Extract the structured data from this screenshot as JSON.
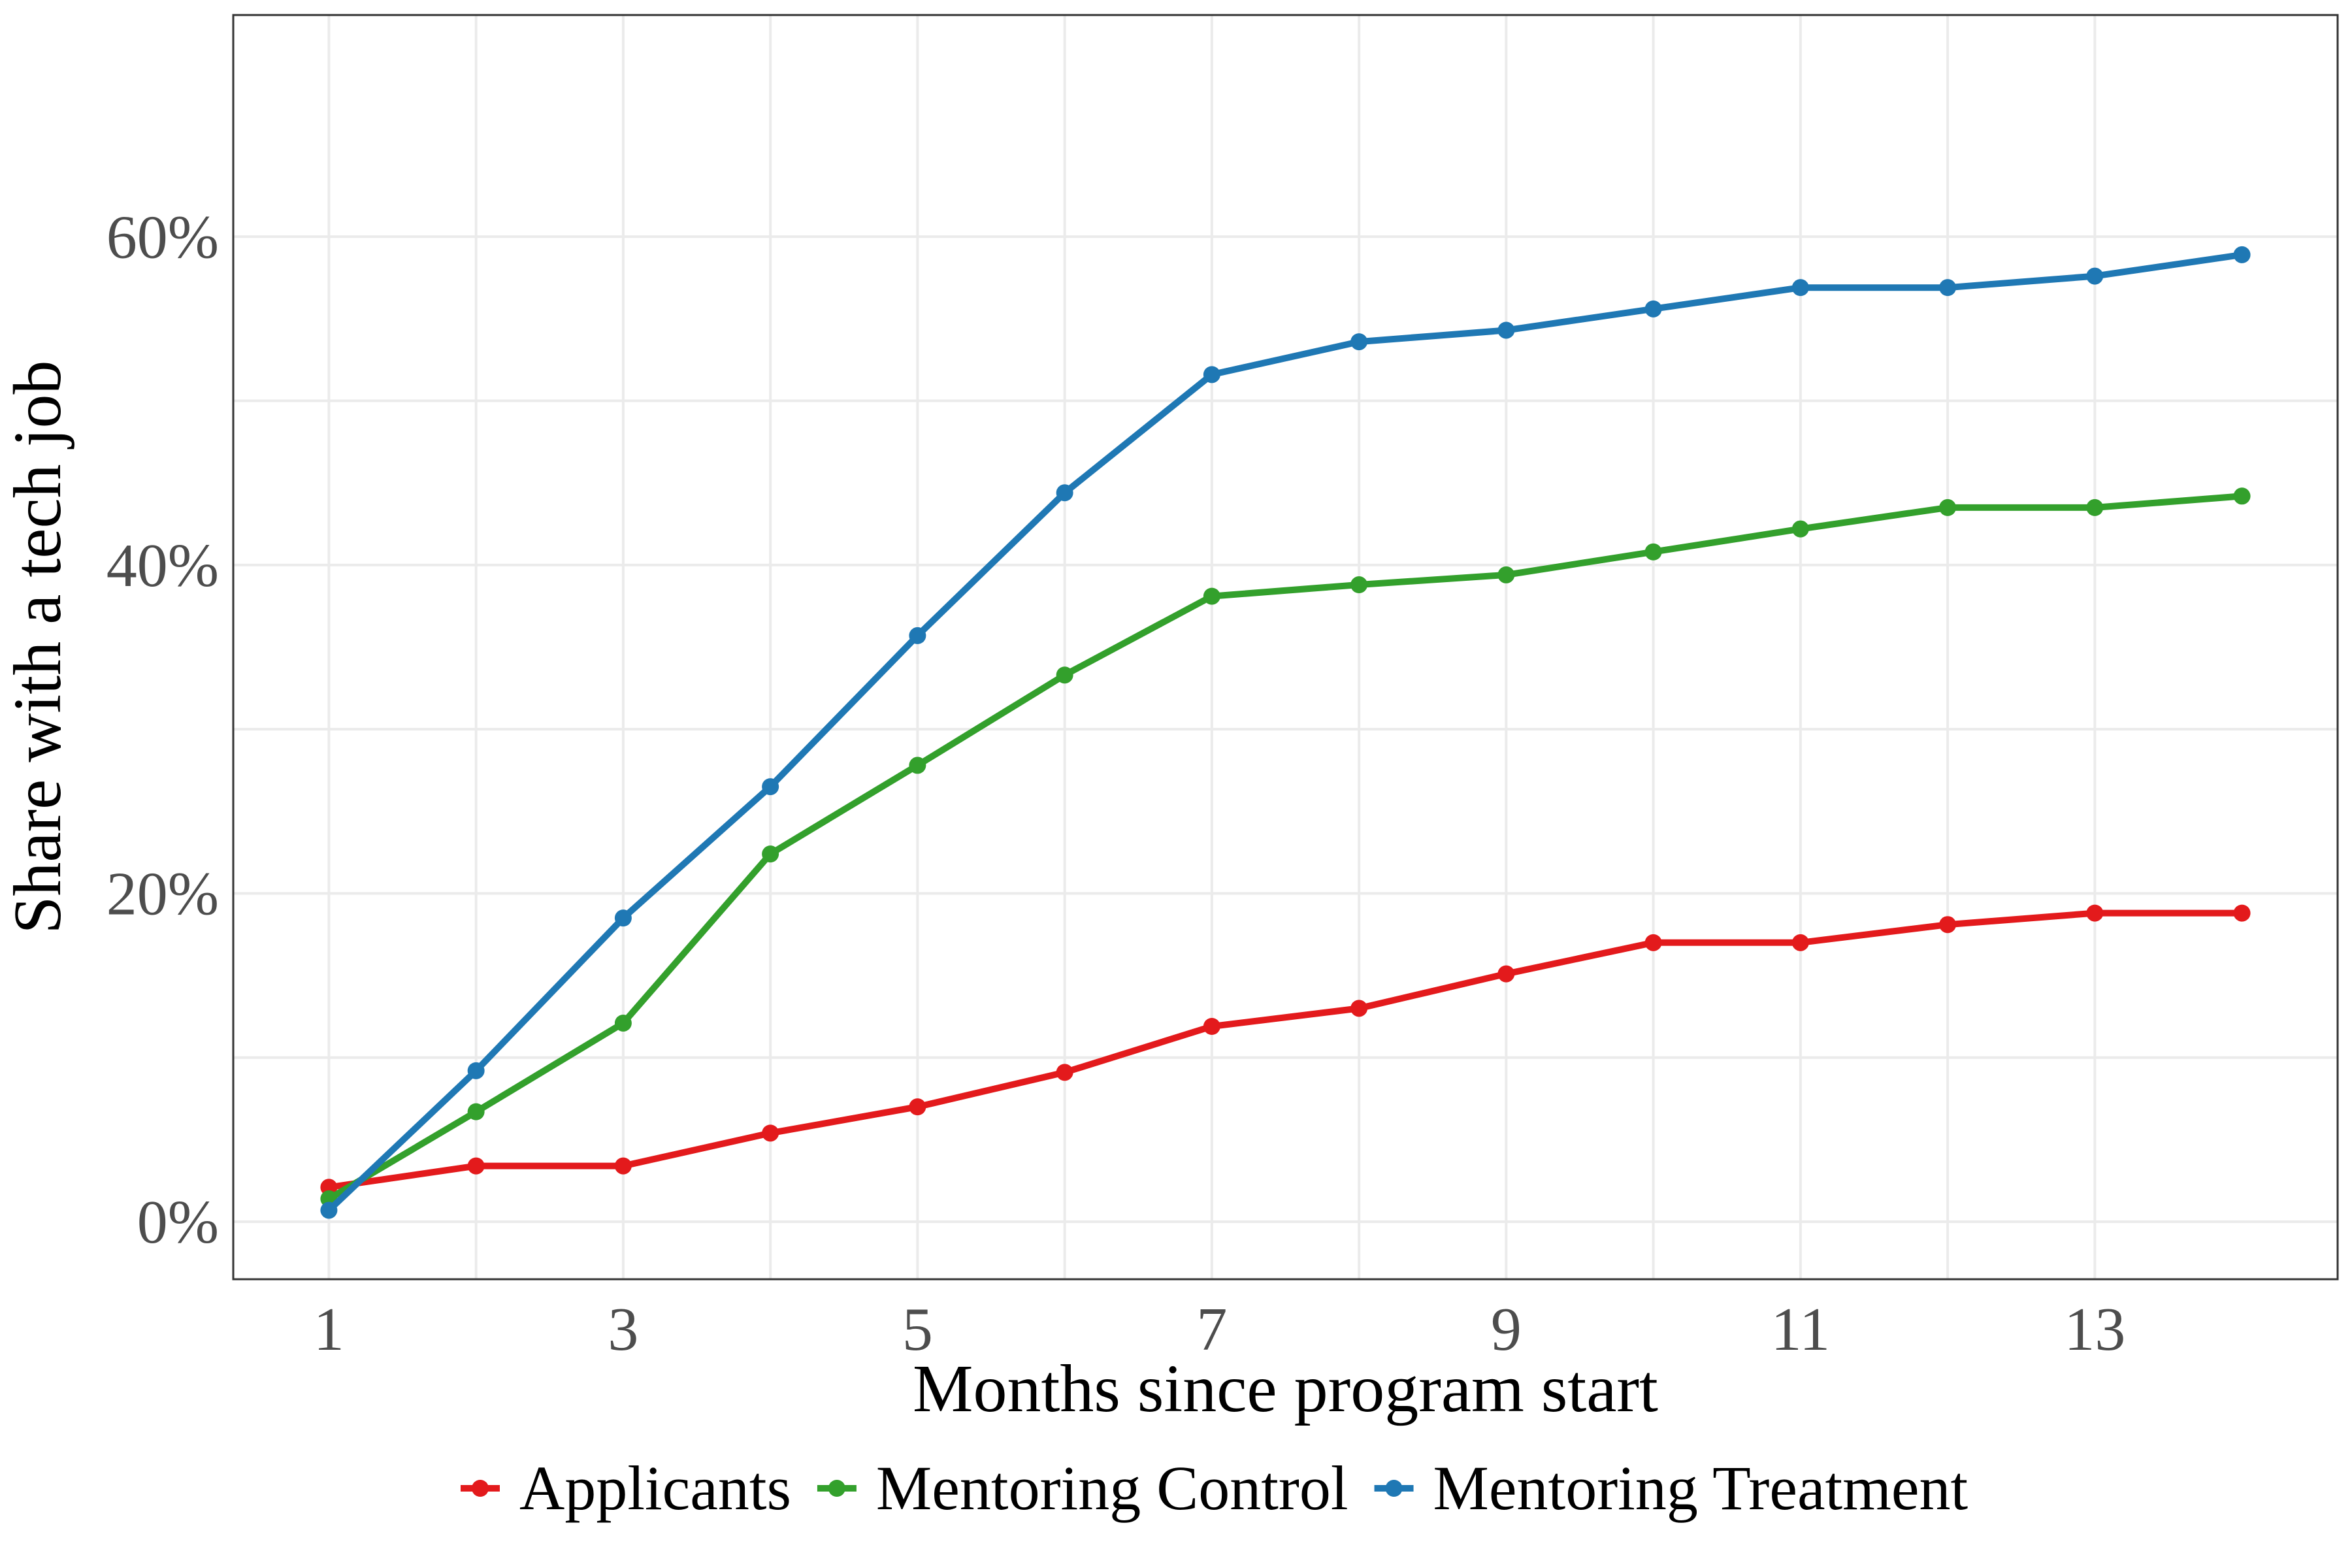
{
  "chart_data": {
    "type": "line",
    "xlabel": "Months since program start",
    "ylabel": "Share with a tech job",
    "x": [
      1,
      2,
      3,
      4,
      5,
      6,
      7,
      8,
      9,
      10,
      11,
      12,
      13,
      14
    ],
    "x_ticks": [
      1,
      3,
      5,
      7,
      9,
      11,
      13
    ],
    "x_tick_labels": [
      "1",
      "3",
      "5",
      "7",
      "9",
      "11",
      "13"
    ],
    "xlim": [
      0.35,
      14.65
    ],
    "y_ticks": [
      0,
      20,
      40,
      60
    ],
    "y_tick_labels": [
      "0%",
      "20%",
      "40%",
      "60%"
    ],
    "ylim": [
      -3.5,
      73.5
    ],
    "y_unit": "percent",
    "grid": true,
    "legend_position": "bottom",
    "series": [
      {
        "name": "Applicants",
        "color": "#e31a1c",
        "values": [
          2.1,
          3.4,
          3.4,
          5.4,
          7.0,
          9.1,
          11.9,
          13.0,
          15.1,
          17.0,
          17.0,
          18.1,
          18.8,
          18.8
        ]
      },
      {
        "name": "Mentoring Control",
        "color": "#33a02c",
        "values": [
          1.4,
          6.7,
          12.1,
          22.4,
          27.8,
          33.3,
          38.1,
          38.8,
          39.4,
          40.8,
          42.2,
          43.5,
          43.5,
          44.2
        ]
      },
      {
        "name": "Mentoring Treatment",
        "color": "#1f78b4",
        "values": [
          0.7,
          9.2,
          18.5,
          26.5,
          35.7,
          44.4,
          51.6,
          53.6,
          54.3,
          55.6,
          56.9,
          56.9,
          57.6,
          58.9
        ]
      }
    ]
  }
}
